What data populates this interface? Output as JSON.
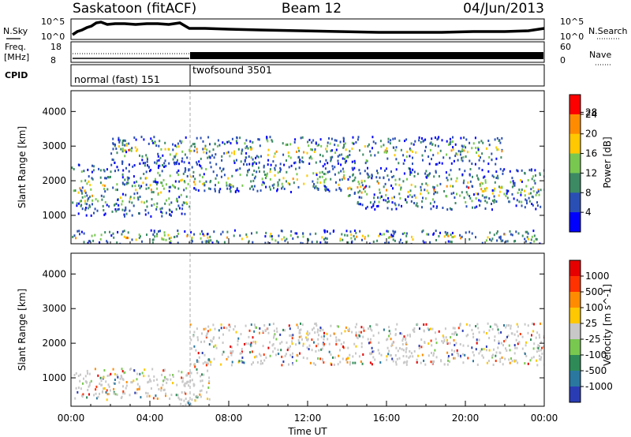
{
  "header": {
    "station": "Saskatoon (fitACF)",
    "beam": "Beam 12",
    "date": "04/Jun/2013"
  },
  "sky_panel": {
    "left_label": "N.Sky",
    "left_ticks": [
      "10^5",
      "10^0"
    ],
    "right_ticks": [
      "10^5",
      "10^0"
    ],
    "right_label": "N.Search"
  },
  "freq_panel": {
    "left_label_1": "Freq.",
    "left_label_2": "[MHz]",
    "left_ticks": [
      "18",
      "8"
    ],
    "right_ticks": [
      "60",
      "0"
    ],
    "right_label": "Nave"
  },
  "cpid_panel": {
    "label": "CPID",
    "modes": [
      {
        "name": "normal (fast) 151",
        "start_hour": 0,
        "end_hour": 5.9
      },
      {
        "name": "twofsound 3501",
        "start_hour": 5.9,
        "end_hour": 24
      }
    ]
  },
  "chart_data": [
    {
      "type": "heatmap",
      "title": "",
      "xlabel": "Time UT",
      "ylabel": "Slant Range [km]",
      "x_ticks": [
        "00:00",
        "04:00",
        "08:00",
        "12:00",
        "16:00",
        "20:00",
        "00:00"
      ],
      "xlim_hours": [
        0,
        24
      ],
      "y_ticks": [
        1000,
        2000,
        3000,
        4000
      ],
      "ylim": [
        180,
        4600
      ],
      "colorbar": {
        "label": "Power [dB]",
        "ticks": [
          "4",
          "8",
          "12",
          "16",
          "20",
          "24",
          "28"
        ],
        "colors": [
          "#0000ff",
          "#2a4fb4",
          "#3c8a64",
          "#78c850",
          "#ffc800",
          "#ff8c00",
          "#ff0000"
        ]
      },
      "echo_bands": [
        {
          "start_hour": 0,
          "end_hour": 24,
          "range_start_km": 200,
          "range_end_km": 600
        },
        {
          "start_hour": 0,
          "end_hour": 6,
          "range_start_km": 1000,
          "range_end_km": 2500
        },
        {
          "start_hour": 6,
          "end_hour": 14,
          "range_start_km": 1700,
          "range_end_km": 2500
        },
        {
          "start_hour": 14,
          "end_hour": 24,
          "range_start_km": 1200,
          "range_end_km": 2400
        },
        {
          "start_hour": 2,
          "end_hour": 22,
          "range_start_km": 2500,
          "range_end_km": 3300
        }
      ]
    },
    {
      "type": "heatmap",
      "title": "",
      "xlabel": "Time UT",
      "ylabel": "Slant Range [km]",
      "x_ticks": [
        "00:00",
        "04:00",
        "08:00",
        "12:00",
        "16:00",
        "20:00",
        "00:00"
      ],
      "xlim_hours": [
        0,
        24
      ],
      "y_ticks": [
        1000,
        2000,
        3000,
        4000
      ],
      "ylim": [
        180,
        4600
      ],
      "colorbar": {
        "label": "Velocity [m s^-1]",
        "ticks": [
          "1000",
          "500",
          "100",
          "25",
          "-25",
          "-100",
          "-500",
          "-1000"
        ],
        "colors": [
          "#2a3cb4",
          "#2a78a0",
          "#2e8b57",
          "#78c850",
          "#c8c8c8",
          "#ffc800",
          "#ff8c00",
          "#ff3200",
          "#e60000"
        ]
      },
      "echo_bands": [
        {
          "start_hour": 0,
          "end_hour": 6,
          "range_start_km": 400,
          "range_end_km": 1300
        },
        {
          "start_hour": 6,
          "end_hour": 24,
          "range_start_km": 1400,
          "range_end_km": 2600
        },
        {
          "start_hour": 5.5,
          "end_hour": 7,
          "range_start_km": 200,
          "range_end_km": 1400
        }
      ]
    }
  ]
}
